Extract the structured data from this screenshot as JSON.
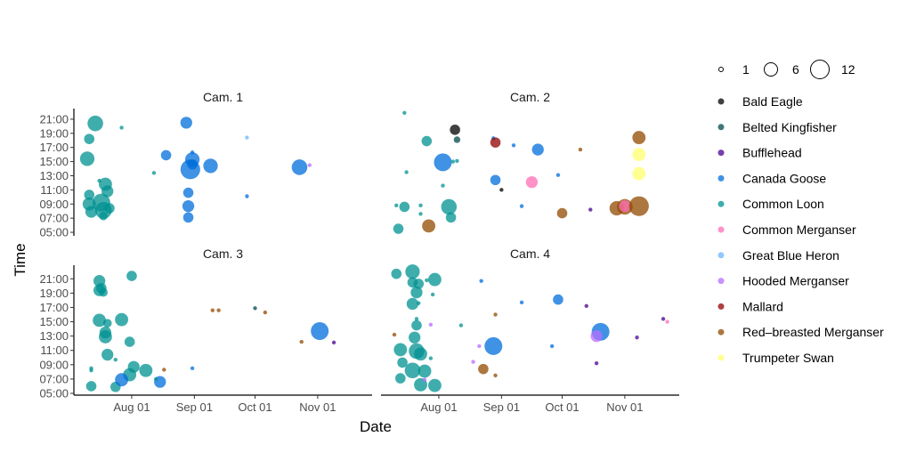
{
  "chart_data": {
    "type": "scatter",
    "title": "",
    "xlabel": "Date",
    "ylabel": "Time",
    "x_ticks": [
      {
        "date": "08-01",
        "label": "Aug 01"
      },
      {
        "date": "09-01",
        "label": "Sep 01"
      },
      {
        "date": "10-01",
        "label": "Oct 01"
      },
      {
        "date": "11-01",
        "label": "Nov 01"
      }
    ],
    "y_ticks": [
      {
        "hour": 21,
        "label": "21:00"
      },
      {
        "hour": 19,
        "label": "19:00"
      },
      {
        "hour": 17,
        "label": "17:00"
      },
      {
        "hour": 15,
        "label": "15:00"
      },
      {
        "hour": 13,
        "label": "13:00"
      },
      {
        "hour": 11,
        "label": "11:00"
      },
      {
        "hour": 9,
        "label": "09:00"
      },
      {
        "hour": 7,
        "label": "07:00"
      },
      {
        "hour": 5,
        "label": "05:00"
      }
    ],
    "xlim": [
      "07-03",
      "11-28"
    ],
    "ylim": [
      4.5,
      22.5
    ],
    "grid": false,
    "legend_position": "right",
    "size_legend": {
      "values": [
        1,
        6,
        12
      ],
      "labels": [
        "1",
        "6",
        "12"
      ]
    },
    "species": [
      {
        "name": "Bald Eagle",
        "color": "#000000"
      },
      {
        "name": "Belted Kingfisher",
        "color": "#004949"
      },
      {
        "name": "Bufflehead",
        "color": "#490092"
      },
      {
        "name": "Canada Goose",
        "color": "#006ddb"
      },
      {
        "name": "Common Loon",
        "color": "#009292"
      },
      {
        "name": "Common Merganser",
        "color": "#ff6db6"
      },
      {
        "name": "Great Blue Heron",
        "color": "#6db6ff"
      },
      {
        "name": "Hooded Merganser",
        "color": "#b66dff"
      },
      {
        "name": "Mallard",
        "color": "#920000"
      },
      {
        "name": "Red–breasted Merganser",
        "color": "#924900"
      },
      {
        "name": "Trumpeter Swan",
        "color": "#ffff6d"
      }
    ],
    "point_fields": [
      "species_index",
      "date",
      "hour",
      "count"
    ],
    "panels": [
      {
        "title": "Cam. 1",
        "points": [
          [
            4,
            "07-14",
            20.4,
            8
          ],
          [
            4,
            "07-27",
            19.8,
            1
          ],
          [
            4,
            "07-11",
            18.2,
            4
          ],
          [
            4,
            "07-10",
            15.4,
            7
          ],
          [
            4,
            "08-12",
            13.4,
            1
          ],
          [
            4,
            "07-16",
            12.3,
            1
          ],
          [
            4,
            "07-19",
            11.8,
            6
          ],
          [
            4,
            "07-20",
            10.8,
            5
          ],
          [
            4,
            "07-11",
            10.3,
            4
          ],
          [
            4,
            "07-11",
            9.0,
            6
          ],
          [
            4,
            "07-17",
            9.2,
            10
          ],
          [
            4,
            "07-12",
            7.9,
            5
          ],
          [
            4,
            "07-18",
            8.1,
            9
          ],
          [
            4,
            "07-21",
            8.4,
            4
          ],
          [
            4,
            "07-18",
            7.3,
            3
          ],
          [
            3,
            "08-28",
            20.5,
            5
          ],
          [
            3,
            "08-18",
            15.9,
            4
          ],
          [
            3,
            "08-31",
            16.3,
            1
          ],
          [
            3,
            "08-31",
            15.3,
            7
          ],
          [
            3,
            "08-30",
            13.9,
            12
          ],
          [
            3,
            "08-31",
            14.6,
            4
          ],
          [
            3,
            "09-09",
            14.4,
            7
          ],
          [
            3,
            "08-29",
            10.6,
            4
          ],
          [
            3,
            "08-29",
            8.7,
            5
          ],
          [
            3,
            "08-29",
            7.1,
            4
          ],
          [
            3,
            "09-27",
            10.1,
            1
          ],
          [
            3,
            "10-23",
            14.2,
            8
          ],
          [
            6,
            "09-27",
            18.4,
            1
          ],
          [
            7,
            "10-28",
            14.5,
            1
          ]
        ]
      },
      {
        "title": "Cam. 2",
        "points": [
          [
            4,
            "07-15",
            21.9,
            1
          ],
          [
            0,
            "08-09",
            19.5,
            4
          ],
          [
            1,
            "08-10",
            18.1,
            2
          ],
          [
            4,
            "07-26",
            17.9,
            4
          ],
          [
            3,
            "08-28",
            18.3,
            1
          ],
          [
            8,
            "08-29",
            17.7,
            4
          ],
          [
            3,
            "09-07",
            17.3,
            1
          ],
          [
            3,
            "09-19",
            16.7,
            5
          ],
          [
            9,
            "10-10",
            16.7,
            1
          ],
          [
            9,
            "11-08",
            18.4,
            6
          ],
          [
            10,
            "11-08",
            16.0,
            6
          ],
          [
            10,
            "11-08",
            13.3,
            6
          ],
          [
            3,
            "08-03",
            14.9,
            10
          ],
          [
            4,
            "08-08",
            15.0,
            1
          ],
          [
            4,
            "08-10",
            15.1,
            1
          ],
          [
            4,
            "07-16",
            13.5,
            1
          ],
          [
            3,
            "08-29",
            12.4,
            4
          ],
          [
            0,
            "09-01",
            11.0,
            1
          ],
          [
            5,
            "09-16",
            12.1,
            5
          ],
          [
            3,
            "09-29",
            13.1,
            1
          ],
          [
            4,
            "08-03",
            11.6,
            1
          ],
          [
            4,
            "07-11",
            8.8,
            1
          ],
          [
            4,
            "07-15",
            8.6,
            4
          ],
          [
            4,
            "07-23",
            8.8,
            1
          ],
          [
            4,
            "07-23",
            7.6,
            1
          ],
          [
            4,
            "08-06",
            8.6,
            8
          ],
          [
            4,
            "08-07",
            7.1,
            4
          ],
          [
            4,
            "07-12",
            5.5,
            4
          ],
          [
            9,
            "07-27",
            5.9,
            6
          ],
          [
            3,
            "09-11",
            8.7,
            1
          ],
          [
            9,
            "10-01",
            7.7,
            4
          ],
          [
            2,
            "10-15",
            8.2,
            1
          ],
          [
            9,
            "10-28",
            8.4,
            7
          ],
          [
            9,
            "11-01",
            8.6,
            8
          ],
          [
            5,
            "11-01",
            8.7,
            5
          ],
          [
            9,
            "11-08",
            8.7,
            12
          ]
        ]
      },
      {
        "title": "Cam. 3",
        "points": [
          [
            4,
            "08-01",
            21.4,
            4
          ],
          [
            4,
            "07-16",
            20.7,
            5
          ],
          [
            4,
            "07-17",
            19.7,
            4
          ],
          [
            4,
            "07-16",
            19.4,
            5
          ],
          [
            4,
            "07-18",
            19.1,
            3
          ],
          [
            4,
            "07-16",
            15.2,
            6
          ],
          [
            4,
            "07-20",
            14.8,
            3
          ],
          [
            4,
            "07-27",
            15.3,
            6
          ],
          [
            4,
            "07-19",
            13.5,
            5
          ],
          [
            4,
            "07-19",
            12.9,
            6
          ],
          [
            4,
            "07-31",
            12.2,
            4
          ],
          [
            4,
            "07-20",
            10.4,
            5
          ],
          [
            4,
            "07-24",
            9.7,
            1
          ],
          [
            4,
            "07-12",
            8.5,
            1
          ],
          [
            4,
            "07-12",
            8.2,
            1
          ],
          [
            4,
            "08-02",
            8.7,
            5
          ],
          [
            4,
            "08-08",
            8.2,
            6
          ],
          [
            4,
            "07-31",
            7.6,
            6
          ],
          [
            4,
            "07-12",
            6.0,
            4
          ],
          [
            4,
            "07-24",
            5.9,
            4
          ],
          [
            3,
            "07-27",
            6.9,
            6
          ],
          [
            3,
            "08-15",
            6.6,
            5
          ],
          [
            4,
            "08-13",
            7.0,
            1
          ],
          [
            9,
            "08-17",
            8.3,
            1
          ],
          [
            3,
            "08-31",
            8.5,
            1
          ],
          [
            9,
            "09-10",
            16.6,
            1
          ],
          [
            9,
            "09-13",
            16.6,
            1
          ],
          [
            1,
            "10-01",
            16.9,
            1
          ],
          [
            9,
            "10-06",
            16.3,
            1
          ],
          [
            3,
            "11-02",
            13.7,
            10
          ],
          [
            9,
            "10-24",
            12.2,
            1
          ],
          [
            2,
            "11-09",
            12.1,
            1
          ]
        ]
      },
      {
        "title": "Cam. 4",
        "points": [
          [
            4,
            "07-11",
            21.7,
            4
          ],
          [
            4,
            "07-19",
            22.0,
            7
          ],
          [
            4,
            "07-19",
            20.5,
            4
          ],
          [
            4,
            "07-22",
            20.3,
            4
          ],
          [
            4,
            "07-26",
            20.8,
            1
          ],
          [
            4,
            "07-30",
            20.9,
            6
          ],
          [
            4,
            "07-21",
            19.1,
            5
          ],
          [
            4,
            "07-29",
            18.8,
            1
          ],
          [
            4,
            "07-19",
            17.5,
            5
          ],
          [
            4,
            "07-22",
            17.6,
            1
          ],
          [
            4,
            "07-21",
            15.4,
            1
          ],
          [
            4,
            "07-21",
            14.5,
            4
          ],
          [
            7,
            "07-28",
            14.6,
            1
          ],
          [
            4,
            "08-12",
            14.5,
            1
          ],
          [
            9,
            "07-10",
            13.2,
            1
          ],
          [
            4,
            "07-20",
            12.8,
            5
          ],
          [
            4,
            "07-13",
            11.1,
            6
          ],
          [
            4,
            "07-21",
            10.9,
            8
          ],
          [
            4,
            "07-23",
            10.5,
            6
          ],
          [
            4,
            "07-28",
            9.9,
            1
          ],
          [
            4,
            "07-14",
            9.3,
            4
          ],
          [
            4,
            "07-19",
            8.2,
            8
          ],
          [
            4,
            "07-25",
            8.1,
            6
          ],
          [
            4,
            "07-13",
            7.1,
            4
          ],
          [
            4,
            "07-23",
            6.2,
            6
          ],
          [
            4,
            "07-30",
            6.1,
            6
          ],
          [
            7,
            "07-25",
            6.9,
            1
          ],
          [
            3,
            "08-22",
            20.7,
            1
          ],
          [
            3,
            "09-11",
            17.7,
            1
          ],
          [
            3,
            "09-29",
            18.1,
            4
          ],
          [
            9,
            "08-29",
            16.0,
            1
          ],
          [
            2,
            "10-13",
            17.2,
            1
          ],
          [
            2,
            "11-20",
            15.4,
            1
          ],
          [
            5,
            "11-22",
            15.0,
            1
          ],
          [
            3,
            "08-28",
            11.6,
            10
          ],
          [
            7,
            "08-21",
            11.6,
            1
          ],
          [
            7,
            "08-18",
            9.4,
            1
          ],
          [
            9,
            "08-23",
            8.4,
            4
          ],
          [
            9,
            "08-29",
            7.5,
            1
          ],
          [
            3,
            "09-26",
            11.6,
            1
          ],
          [
            3,
            "10-20",
            13.6,
            10
          ],
          [
            7,
            "10-18",
            13.0,
            5
          ],
          [
            2,
            "11-07",
            12.8,
            1
          ],
          [
            2,
            "10-18",
            9.2,
            1
          ]
        ]
      }
    ]
  }
}
